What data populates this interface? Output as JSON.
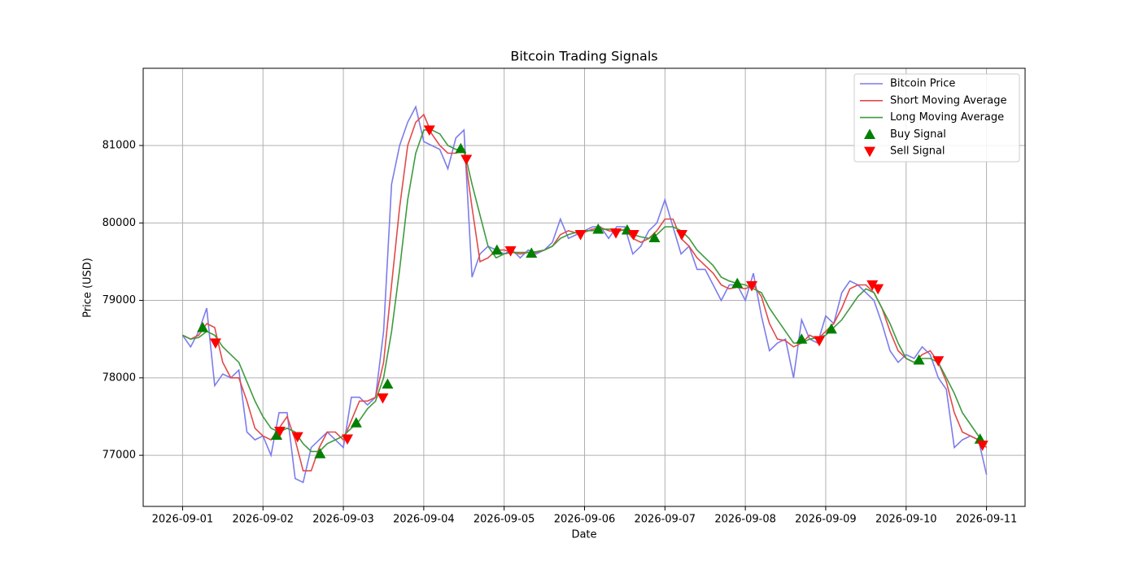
{
  "chart_data": {
    "type": "line",
    "title": "Bitcoin Trading Signals",
    "xlabel": "Date",
    "ylabel": "Price (USD)",
    "xlim": [
      -0.49,
      10.48
    ],
    "ylim": [
      76340,
      81997
    ],
    "xticks": [
      {
        "value": 0,
        "label": "2026-09-01"
      },
      {
        "value": 1,
        "label": "2026-09-02"
      },
      {
        "value": 2,
        "label": "2026-09-03"
      },
      {
        "value": 3,
        "label": "2026-09-04"
      },
      {
        "value": 4,
        "label": "2026-09-05"
      },
      {
        "value": 5,
        "label": "2026-09-06"
      },
      {
        "value": 6,
        "label": "2026-09-07"
      },
      {
        "value": 7,
        "label": "2026-09-08"
      },
      {
        "value": 8,
        "label": "2026-09-09"
      },
      {
        "value": 9,
        "label": "2026-09-10"
      },
      {
        "value": 10,
        "label": "2026-09-11"
      }
    ],
    "yticks": [
      77000,
      78000,
      79000,
      80000,
      81000
    ],
    "grid": true,
    "legend": "upper right",
    "x": [
      0,
      0.1,
      0.2,
      0.3,
      0.4,
      0.5,
      0.6,
      0.7,
      0.8,
      0.9,
      1,
      1.1,
      1.2,
      1.3,
      1.4,
      1.5,
      1.6,
      1.7,
      1.8,
      1.9,
      2,
      2.1,
      2.2,
      2.3,
      2.4,
      2.5,
      2.6,
      2.7,
      2.8,
      2.9,
      3,
      3.1,
      3.2,
      3.3,
      3.4,
      3.5,
      3.6,
      3.7,
      3.8,
      3.9,
      4,
      4.1,
      4.2,
      4.3,
      4.4,
      4.5,
      4.6,
      4.7,
      4.8,
      4.9,
      5,
      5.1,
      5.2,
      5.3,
      5.4,
      5.5,
      5.6,
      5.7,
      5.8,
      5.9,
      6,
      6.1,
      6.2,
      6.3,
      6.4,
      6.5,
      6.6,
      6.7,
      6.8,
      6.9,
      7,
      7.1,
      7.2,
      7.3,
      7.4,
      7.5,
      7.6,
      7.7,
      7.8,
      7.9,
      8,
      8.1,
      8.2,
      8.3,
      8.4,
      8.5,
      8.6,
      8.7,
      8.8,
      8.9,
      9,
      9.1,
      9.2,
      9.3,
      9.4,
      9.5,
      9.6,
      9.7,
      9.8,
      9.9,
      10
    ],
    "series": [
      {
        "name": "Bitcoin Price",
        "kind": "line",
        "color": "#7c7cec",
        "values": [
          78550,
          78400,
          78600,
          78900,
          77900,
          78050,
          78000,
          78100,
          77300,
          77200,
          77250,
          77000,
          77550,
          77550,
          76700,
          76650,
          77100,
          77200,
          77300,
          77200,
          77100,
          77750,
          77750,
          77650,
          77750,
          78600,
          80500,
          81000,
          81300,
          81500,
          81050,
          81000,
          80950,
          80700,
          81100,
          81200,
          79300,
          79600,
          79700,
          79650,
          79600,
          79650,
          79550,
          79650,
          79600,
          79650,
          79750,
          80050,
          79800,
          79850,
          79900,
          79950,
          79950,
          79800,
          79950,
          79950,
          79600,
          79700,
          79900,
          80000,
          80300,
          79950,
          79600,
          79700,
          79400,
          79400,
          79200,
          79000,
          79200,
          79200,
          79000,
          79350,
          78800,
          78350,
          78450,
          78500,
          78000,
          78750,
          78500,
          78450,
          78800,
          78700,
          79100,
          79250,
          79200,
          79100,
          79000,
          78700,
          78350,
          78200,
          78300,
          78250,
          78400,
          78300,
          78000,
          77850,
          77100,
          77200,
          77250,
          77200,
          76750
        ]
      },
      {
        "name": "Short Moving Average",
        "kind": "line",
        "color": "#e24a4a",
        "values": [
          78550,
          78500,
          78550,
          78700,
          78650,
          78200,
          78000,
          78000,
          77700,
          77350,
          77250,
          77200,
          77350,
          77500,
          77200,
          76800,
          76800,
          77100,
          77300,
          77300,
          77200,
          77450,
          77700,
          77700,
          77750,
          78200,
          79200,
          80200,
          81000,
          81300,
          81400,
          81150,
          81000,
          80900,
          80900,
          80950,
          80200,
          79500,
          79550,
          79650,
          79650,
          79620,
          79600,
          79620,
          79620,
          79650,
          79700,
          79850,
          79900,
          79870,
          79880,
          79920,
          79940,
          79900,
          79880,
          79920,
          79800,
          79750,
          79800,
          79900,
          80050,
          80050,
          79800,
          79700,
          79550,
          79450,
          79350,
          79200,
          79150,
          79170,
          79150,
          79200,
          79050,
          78700,
          78500,
          78480,
          78400,
          78450,
          78550,
          78500,
          78600,
          78700,
          78900,
          79150,
          79200,
          79200,
          79100,
          78900,
          78600,
          78350,
          78250,
          78200,
          78300,
          78350,
          78200,
          77950,
          77550,
          77300,
          77250,
          77200,
          77100
        ]
      },
      {
        "name": "Long Moving Average",
        "kind": "line",
        "color": "#3f9a3f",
        "values": [
          78550,
          78500,
          78520,
          78600,
          78550,
          78400,
          78300,
          78200,
          77950,
          77700,
          77500,
          77350,
          77300,
          77350,
          77300,
          77150,
          77050,
          77050,
          77150,
          77200,
          77250,
          77350,
          77450,
          77600,
          77700,
          78000,
          78600,
          79400,
          80300,
          80900,
          81200,
          81200,
          81150,
          81000,
          80950,
          80950,
          80500,
          80100,
          79700,
          79550,
          79600,
          79620,
          79620,
          79620,
          79630,
          79650,
          79700,
          79800,
          79850,
          79880,
          79900,
          79900,
          79920,
          79920,
          79920,
          79900,
          79850,
          79820,
          79800,
          79850,
          79950,
          79950,
          79900,
          79800,
          79650,
          79550,
          79450,
          79300,
          79250,
          79220,
          79200,
          79150,
          79100,
          78900,
          78750,
          78600,
          78450,
          78450,
          78500,
          78520,
          78550,
          78650,
          78750,
          78900,
          79050,
          79150,
          79100,
          78900,
          78700,
          78450,
          78250,
          78200,
          78250,
          78250,
          78200,
          78000,
          77800,
          77550,
          77400,
          77250,
          77150
        ]
      },
      {
        "name": "Buy Signal",
        "kind": "scatter",
        "marker": "^",
        "color": "#008000",
        "x": [
          0.25,
          1.17,
          1.71,
          2.16,
          2.55,
          3.46,
          3.91,
          4.34,
          5.17,
          5.53,
          5.87,
          6.9,
          7.7,
          8.07,
          9.16,
          9.92
        ],
        "values": [
          78650,
          77260,
          77020,
          77420,
          77920,
          80960,
          79650,
          79610,
          79920,
          79910,
          79810,
          79220,
          78500,
          78630,
          78230,
          77210
        ]
      },
      {
        "name": "Sell Signal",
        "kind": "scatter",
        "marker": "v",
        "color": "#ff0000",
        "x": [
          0.41,
          1.21,
          1.43,
          2.05,
          2.49,
          3.07,
          3.53,
          4.08,
          4.95,
          5.39,
          5.61,
          6.21,
          7.08,
          7.92,
          8.58,
          8.65,
          9.4,
          9.95
        ],
        "values": [
          78450,
          77310,
          77240,
          77210,
          77740,
          81200,
          80820,
          79640,
          79850,
          79870,
          79850,
          79850,
          79190,
          78480,
          79200,
          79150,
          78220,
          77130
        ]
      }
    ]
  }
}
